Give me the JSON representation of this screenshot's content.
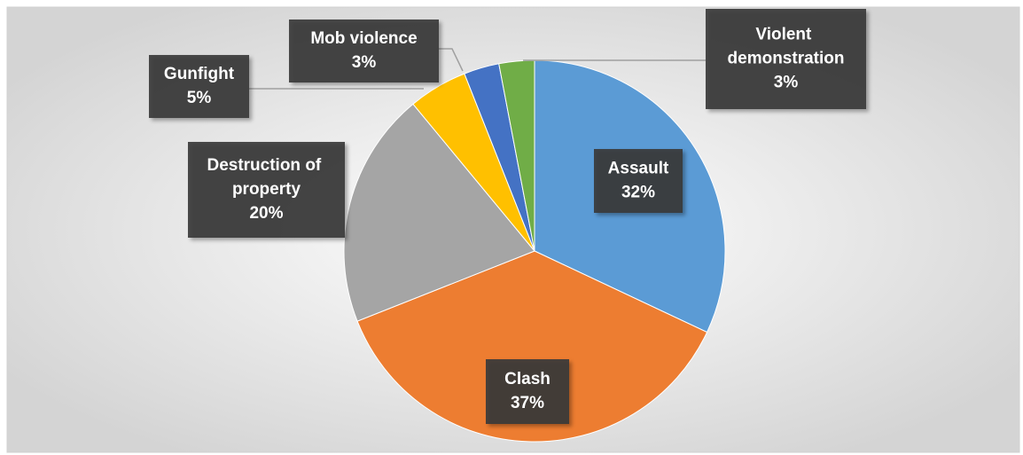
{
  "chart_data": {
    "type": "pie",
    "categories": [
      "Assault",
      "Clash",
      "Destruction of property",
      "Gunfight",
      "Mob violence",
      "Violent demonstration"
    ],
    "values": [
      32,
      37,
      20,
      5,
      3,
      3
    ],
    "value_labels": [
      "32%",
      "37%",
      "20%",
      "5%",
      "3%",
      "3%"
    ],
    "colors": [
      "#5b9bd5",
      "#ed7d31",
      "#a5a5a5",
      "#ffc000",
      "#4472c4",
      "#70ad47"
    ]
  }
}
